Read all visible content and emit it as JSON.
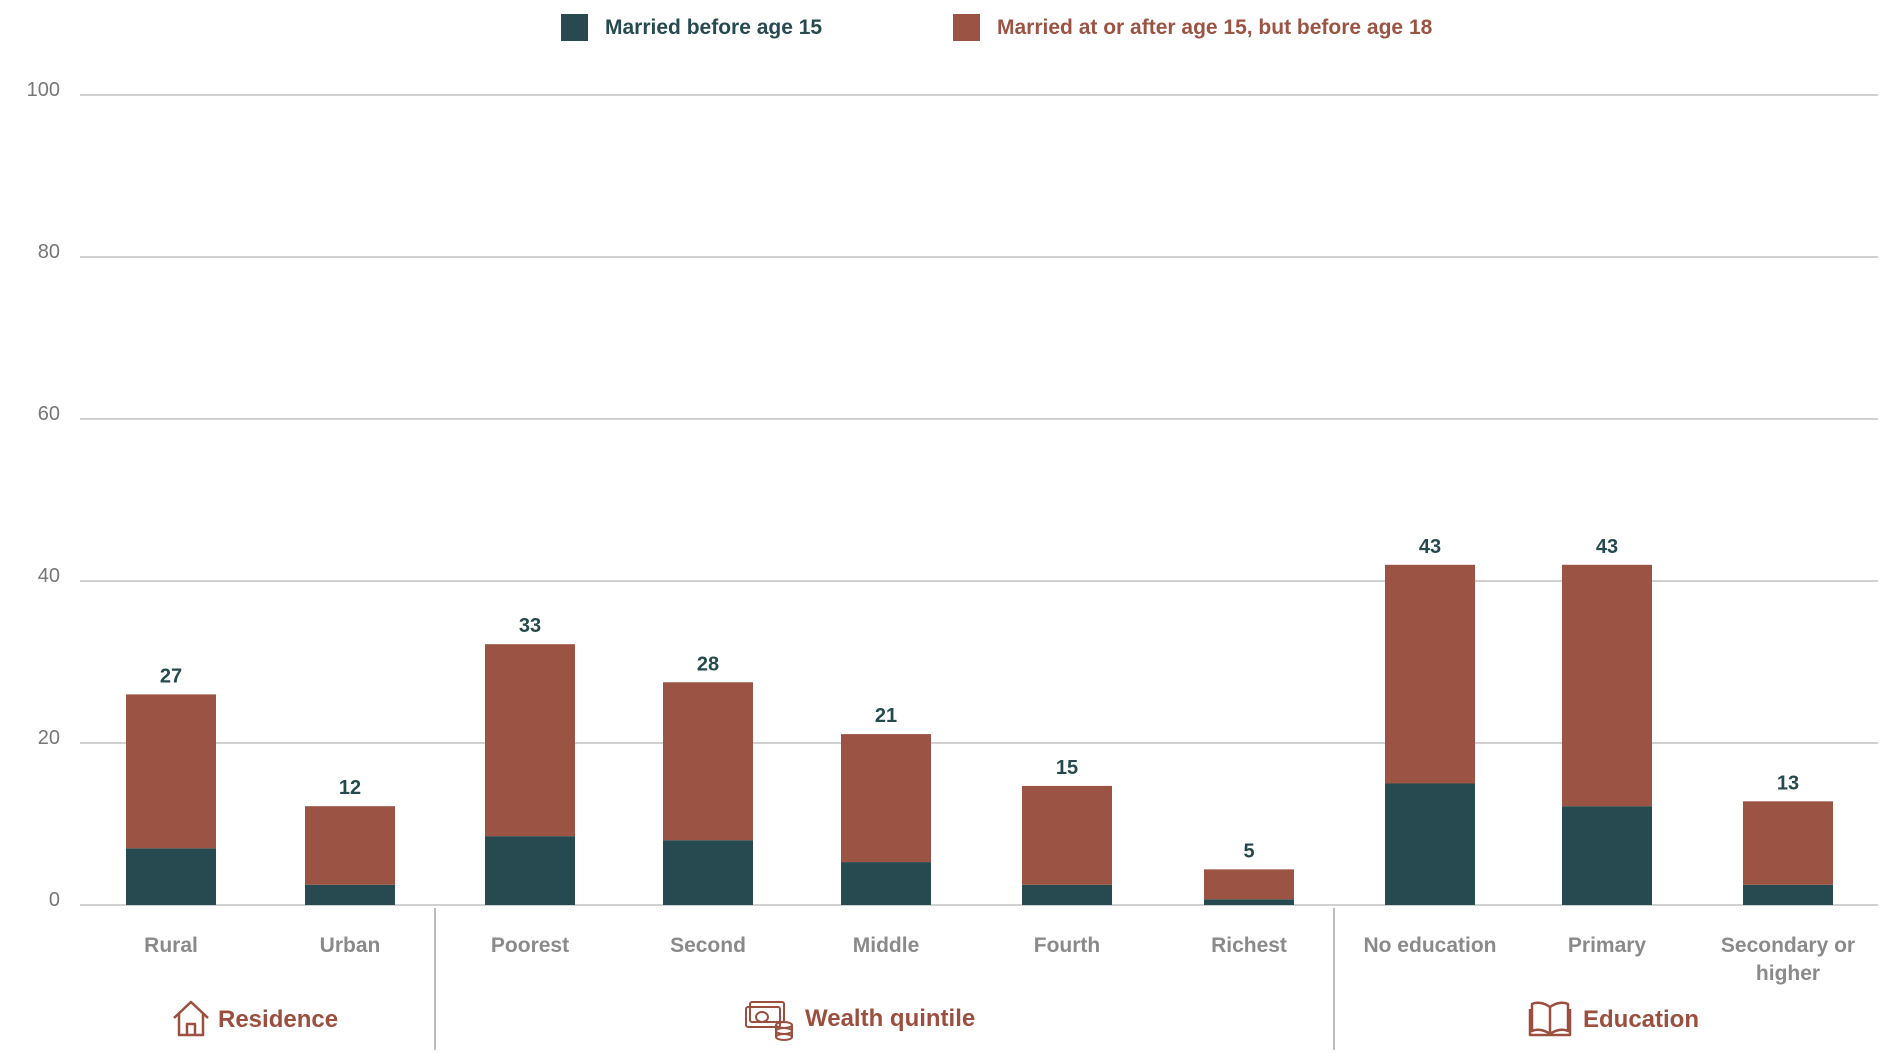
{
  "colors": {
    "before15": "#264a4f",
    "age15to18": "#9b5443",
    "grid": "#d0d0d0",
    "axis_text": "#777777",
    "category_text": "#8a8a8a",
    "group_text": "#9b4f3f",
    "label_text": "#244a4e"
  },
  "legend": {
    "items": [
      {
        "label": "Married before age 15",
        "color": "#264a4f"
      },
      {
        "label": "Married at or after age 15, but before age 18",
        "color": "#9b5443"
      }
    ]
  },
  "groups": [
    {
      "label": "Residence",
      "icon": "house-icon"
    },
    {
      "label": "Wealth quintile",
      "icon": "money-icon"
    },
    {
      "label": "Education",
      "icon": "book-icon"
    }
  ],
  "chart_data": {
    "type": "bar",
    "stacked": true,
    "categories": [
      "Rural",
      "Urban",
      "Poorest",
      "Second",
      "Middle",
      "Fourth",
      "Richest",
      "No education",
      "Primary",
      "Secondary or higher"
    ],
    "category_groups": [
      "Residence",
      "Residence",
      "Wealth quintile",
      "Wealth quintile",
      "Wealth quintile",
      "Wealth quintile",
      "Wealth quintile",
      "Education",
      "Education",
      "Education"
    ],
    "series": [
      {
        "name": "Married before age 15",
        "values": [
          7,
          2.5,
          8.5,
          8,
          5.3,
          2.5,
          0.7,
          15,
          12.2,
          2.5
        ]
      },
      {
        "name": "Married at or after age 15, but before age 18",
        "values": [
          19,
          9.7,
          23.7,
          19.5,
          15.8,
          12.2,
          3.7,
          27,
          29.8,
          10.3
        ]
      }
    ],
    "totals": [
      "27",
      "12",
      "33",
      "28",
      "21",
      "15",
      "5",
      "43",
      "43",
      "13"
    ],
    "yticks": [
      "0",
      "20",
      "40",
      "60",
      "80",
      "100"
    ],
    "ylim": [
      0,
      100
    ],
    "grid": true,
    "legend_position": "top-center"
  }
}
